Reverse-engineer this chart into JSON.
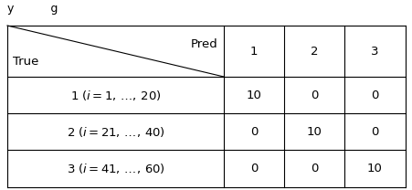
{
  "header_col_labels": [
    "1",
    "2",
    "3"
  ],
  "header_label_pred": "Pred",
  "header_label_true": "True",
  "row_labels": [
    "$1\\;(i=1,\\,\\ldots,\\,20)$",
    "$2\\;(i=21,\\,\\ldots,\\,40)$",
    "$3\\;(i=41,\\,\\ldots,\\,60)$"
  ],
  "data": [
    [
      10,
      0,
      0
    ],
    [
      0,
      10,
      0
    ],
    [
      0,
      0,
      10
    ]
  ],
  "bg_color": "#ffffff",
  "line_color": "#000000",
  "text_color": "#000000",
  "font_size": 9.5,
  "title_stub": "y          g",
  "title_fontsize": 9
}
